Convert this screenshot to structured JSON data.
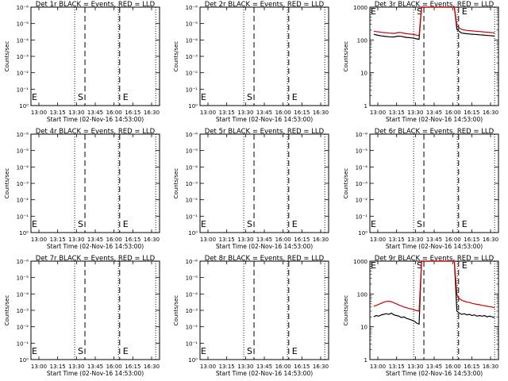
{
  "chart_data": [
    {
      "type": "line",
      "title": "Det 1r BLACK = Events, RED = LLD",
      "xlabel": "Start Time (02-Nov-16 14:53:00)",
      "ylabel": "Counts/sec",
      "xticks": [
        "13:00",
        "13:15",
        "13:30",
        "13:45",
        "16:00",
        "16:15",
        "16:30"
      ],
      "ytick_labels": [
        "10⁰",
        "10⁻¹",
        "10⁻²",
        "10⁻³",
        "10⁻⁴",
        "10⁻⁵",
        "10⁻⁶"
      ],
      "markers": {
        "E1": "E",
        "S": "S",
        "E2": "E"
      },
      "series": []
    },
    {
      "type": "line",
      "title": "Det 2r BLACK = Events, RED = LLD",
      "xlabel": "Start Time (02-Nov-16 14:53:00)",
      "ylabel": "Counts/sec",
      "xticks": [
        "13:00",
        "13:15",
        "13:30",
        "13:45",
        "16:00",
        "16:15",
        "16:30"
      ],
      "ytick_labels": [
        "10⁰",
        "10⁻¹",
        "10⁻²",
        "10⁻³",
        "10⁻⁴",
        "10⁻⁵",
        "10⁻⁶"
      ],
      "markers": {
        "E1": "E",
        "S": "S",
        "E2": "E"
      },
      "series": []
    },
    {
      "type": "line",
      "title": "Det 3r BLACK = Events, RED = LLD",
      "xlabel": "Start Time (02-Nov-16 14:53:00)",
      "ylabel": "Counts/sec",
      "xticks": [
        "13:00",
        "13:15",
        "13:30",
        "13:45",
        "16:00",
        "16:15",
        "16:30"
      ],
      "ytick_labels": [
        "1",
        "10",
        "100",
        "1000"
      ],
      "yscale": "log",
      "ylim": [
        1,
        1000
      ],
      "markers": {
        "E1": "E",
        "S": "S",
        "E2": "E"
      },
      "series": [
        {
          "color": "#000000",
          "values": [
            150,
            142,
            138,
            133,
            130,
            127,
            125,
            124,
            123,
            128,
            131,
            129,
            124,
            120,
            118,
            116,
            113,
            108,
            105,
            1000,
            1000,
            1000,
            1000,
            1000,
            1000,
            1000,
            1000,
            1000,
            1000,
            1000,
            1000,
            1000,
            1000,
            210,
            180,
            162,
            158,
            155,
            152,
            150,
            148,
            146,
            144,
            142,
            140,
            138,
            136,
            134,
            132
          ]
        },
        {
          "color": "#cc0000",
          "values": [
            185,
            180,
            176,
            171,
            168,
            165,
            162,
            160,
            158,
            164,
            168,
            166,
            160,
            156,
            153,
            150,
            146,
            140,
            136,
            1000,
            1000,
            1000,
            1000,
            1000,
            1000,
            1000,
            1000,
            1000,
            1000,
            1000,
            1000,
            1000,
            1000,
            270,
            232,
            208,
            201,
            196,
            192,
            189,
            186,
            183,
            181,
            178,
            175,
            172,
            169,
            166,
            162
          ]
        }
      ]
    },
    {
      "type": "line",
      "title": "Det 4r BLACK = Events, RED = LLD",
      "xlabel": "Start Time (02-Nov-16 14:53:00)",
      "ylabel": "Counts/sec",
      "xticks": [
        "13:00",
        "13:15",
        "13:30",
        "13:45",
        "16:00",
        "16:15",
        "16:30"
      ],
      "ytick_labels": [
        "10⁰",
        "10⁻¹",
        "10⁻²",
        "10⁻³",
        "10⁻⁴",
        "10⁻⁵",
        "10⁻⁶"
      ],
      "markers": {
        "E1": "E",
        "S": "S",
        "E2": "E"
      },
      "series": []
    },
    {
      "type": "line",
      "title": "Det 5r BLACK = Events, RED = LLD",
      "xlabel": "Start Time (02-Nov-16 14:53:00)",
      "ylabel": "Counts/sec",
      "xticks": [
        "13:00",
        "13:15",
        "13:30",
        "13:45",
        "16:00",
        "16:15",
        "16:30"
      ],
      "ytick_labels": [
        "10⁰",
        "10⁻¹",
        "10⁻²",
        "10⁻³",
        "10⁻⁴",
        "10⁻⁵",
        "10⁻⁶"
      ],
      "markers": {
        "E1": "E",
        "S": "S",
        "E2": "E"
      },
      "series": []
    },
    {
      "type": "line",
      "title": "Det 6r BLACK = Events, RED = LLD",
      "xlabel": "Start Time (02-Nov-16 14:53:00)",
      "ylabel": "Counts/sec",
      "xticks": [
        "13:00",
        "13:15",
        "13:30",
        "13:45",
        "16:00",
        "16:15",
        "16:30"
      ],
      "ytick_labels": [
        "10⁰",
        "10⁻¹",
        "10⁻²",
        "10⁻³",
        "10⁻⁴",
        "10⁻⁵",
        "10⁻⁶"
      ],
      "markers": {
        "E1": "E",
        "S": "S",
        "E2": "E"
      },
      "series": []
    },
    {
      "type": "line",
      "title": "Det 7r BLACK = Events, RED = LLD",
      "xlabel": "Start Time (02-Nov-16 14:53:00)",
      "ylabel": "Counts/sec",
      "xticks": [
        "13:00",
        "13:15",
        "13:30",
        "13:45",
        "16:00",
        "16:15",
        "16:30"
      ],
      "ytick_labels": [
        "10⁰",
        "10⁻¹",
        "10⁻²",
        "10⁻³",
        "10⁻⁴",
        "10⁻⁵",
        "10⁻⁶"
      ],
      "markers": {
        "E1": "E",
        "S": "S",
        "E2": "E"
      },
      "series": []
    },
    {
      "type": "line",
      "title": "Det 8r BLACK = Events, RED = LLD",
      "xlabel": "Start Time (02-Nov-16 14:53:00)",
      "ylabel": "Counts/sec",
      "xticks": [
        "13:00",
        "13:15",
        "13:30",
        "13:45",
        "16:00",
        "16:15",
        "16:30"
      ],
      "ytick_labels": [
        "10⁰",
        "10⁻¹",
        "10⁻²",
        "10⁻³",
        "10⁻⁴",
        "10⁻⁵",
        "10⁻⁶"
      ],
      "markers": {
        "E1": "E",
        "S": "S",
        "E2": "E"
      },
      "series": []
    },
    {
      "type": "line",
      "title": "Det 9r BLACK = Events, RED = LLD",
      "xlabel": "Start Time (02-Nov-16 14:53:00)",
      "ylabel": "Counts/sec",
      "xticks": [
        "13:00",
        "13:15",
        "13:30",
        "13:45",
        "16:00",
        "16:15",
        "16:30"
      ],
      "ytick_labels": [
        "1",
        "10",
        "100",
        "1000"
      ],
      "yscale": "log",
      "ylim": [
        1,
        1000
      ],
      "markers": {
        "E1": "E",
        "S": "S",
        "E2": "E"
      },
      "series": [
        {
          "color": "#000000",
          "values": [
            20,
            22,
            21,
            23,
            24,
            25,
            24,
            26,
            23,
            22,
            21,
            19,
            20,
            18,
            17,
            16,
            15,
            13,
            12,
            1000,
            1000,
            1000,
            1000,
            1000,
            1000,
            1000,
            1000,
            1000,
            1000,
            1000,
            1000,
            1000,
            1000,
            30,
            26,
            24,
            25,
            23,
            24,
            22,
            23,
            21,
            22,
            21,
            22,
            20,
            21,
            20,
            19
          ]
        },
        {
          "color": "#cc0000",
          "values": [
            42,
            45,
            48,
            52,
            56,
            59,
            60,
            58,
            54,
            50,
            46,
            43,
            40,
            38,
            36,
            35,
            33,
            31,
            30,
            1000,
            1000,
            1000,
            1000,
            1000,
            1000,
            1000,
            1000,
            1000,
            1000,
            1000,
            1000,
            1000,
            1000,
            95,
            72,
            64,
            60,
            57,
            55,
            52,
            50,
            48,
            47,
            45,
            44,
            42,
            41,
            40,
            38
          ]
        }
      ]
    }
  ]
}
